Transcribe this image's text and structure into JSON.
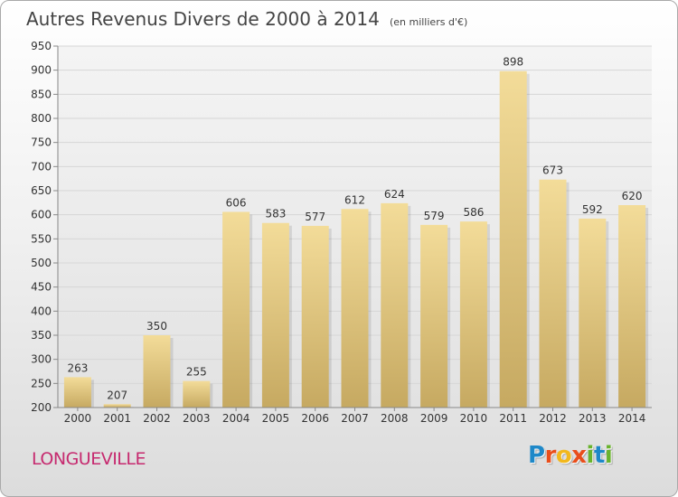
{
  "chart_data": {
    "type": "bar",
    "title": "Autres Revenus Divers de 2000 à 2014",
    "subtitle": "(en milliers d'€)",
    "categories": [
      "2000",
      "2001",
      "2002",
      "2003",
      "2004",
      "2005",
      "2006",
      "2007",
      "2008",
      "2009",
      "2010",
      "2011",
      "2012",
      "2013",
      "2014"
    ],
    "values": [
      263,
      207,
      350,
      255,
      606,
      583,
      577,
      612,
      624,
      579,
      586,
      898,
      673,
      592,
      620
    ],
    "ylim": [
      200,
      950
    ],
    "yticks": [
      200,
      250,
      300,
      350,
      400,
      450,
      500,
      550,
      600,
      650,
      700,
      750,
      800,
      850,
      900,
      950
    ],
    "grid": true,
    "bar_color": "#e8d08a",
    "bar_color_dark": "#c9ad63"
  },
  "footer": {
    "location": "LONGUEVILLE",
    "logo_letters": [
      {
        "ch": "P",
        "color": "#1e88c8"
      },
      {
        "ch": "r",
        "color": "#e94e1b"
      },
      {
        "ch": "o",
        "color": "#f2b81d"
      },
      {
        "ch": "x",
        "color": "#e94e1b"
      },
      {
        "ch": "i",
        "color": "#69b32e"
      },
      {
        "ch": "t",
        "color": "#1e88c8"
      },
      {
        "ch": "i",
        "color": "#69b32e"
      }
    ]
  }
}
